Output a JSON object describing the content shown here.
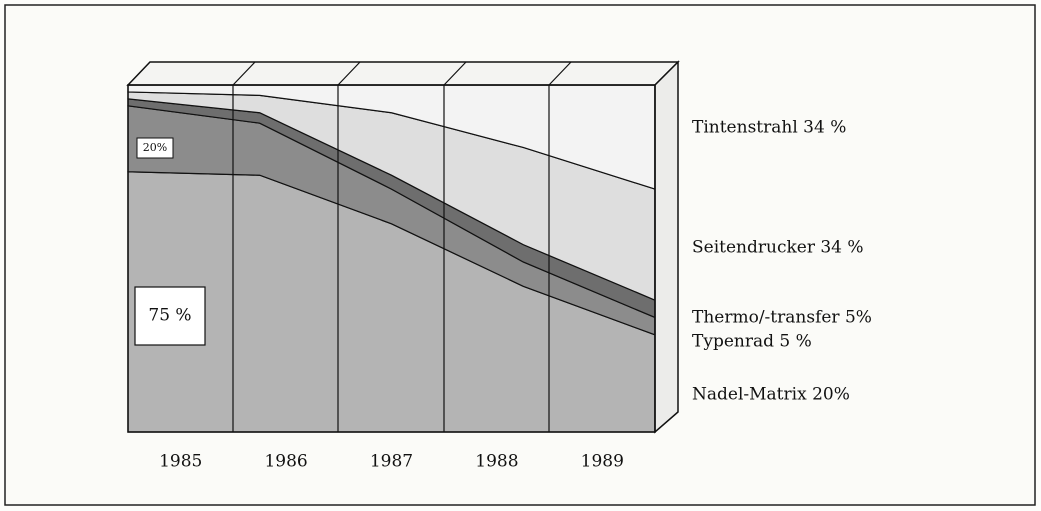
{
  "chart_data": {
    "type": "stacked_area",
    "categories": [
      "1985",
      "1986",
      "1987",
      "1988",
      "1989"
    ],
    "series": [
      {
        "name": "Nadel-Matrix 20%",
        "color": "#b4b4b4",
        "values": [
          75,
          74,
          60,
          42,
          28
        ]
      },
      {
        "name": "Typenrad 5 %",
        "color": "#8c8c8c",
        "values": [
          19,
          15,
          10,
          7,
          5
        ]
      },
      {
        "name": "Thermo/-transfer 5%",
        "color": "#6e6e6e",
        "values": [
          2,
          3,
          4,
          5,
          5
        ]
      },
      {
        "name": "Seitendrucker 34 %",
        "color": "#dedede",
        "values": [
          2,
          5,
          18,
          28,
          32
        ]
      },
      {
        "name": "Tintenstrahl 34 %",
        "color": "#f3f3f3",
        "values": [
          2,
          3,
          8,
          18,
          30
        ]
      }
    ],
    "annotations": [
      "75 %",
      "20%"
    ],
    "ylim": [
      0,
      100
    ]
  }
}
